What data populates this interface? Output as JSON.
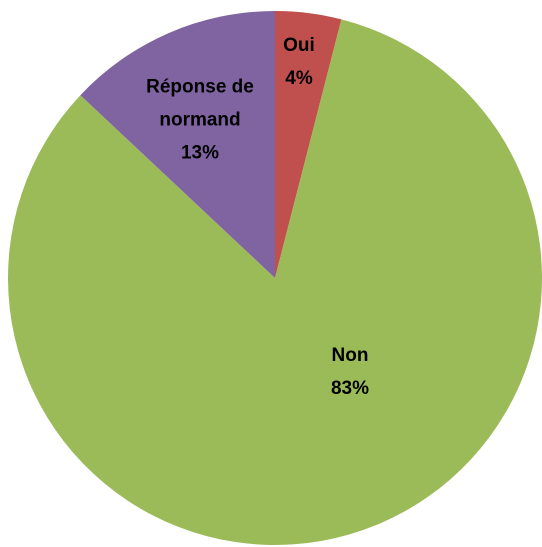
{
  "chart_data": {
    "type": "pie",
    "categories": [
      "Oui",
      "Non",
      "Réponse de normand"
    ],
    "values": [
      4,
      83,
      13
    ],
    "value_labels": [
      "4%",
      "83%",
      "13%"
    ],
    "colors": [
      "#c0504d",
      "#9bbb59",
      "#8064a2"
    ]
  }
}
